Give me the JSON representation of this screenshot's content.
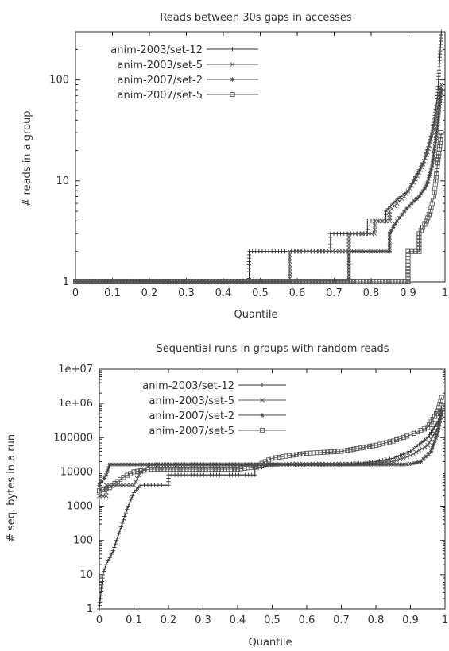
{
  "chart_data": [
    {
      "type": "line",
      "title": "Reads between 30s gaps in accesses",
      "xlabel": "Quantile",
      "ylabel": "# reads in a group",
      "xlim": [
        0,
        1
      ],
      "ylim": [
        1,
        300
      ],
      "y_scale": "log",
      "xticks": [
        "0",
        "0.1",
        "0.2",
        "0.3",
        "0.4",
        "0.5",
        "0.6",
        "0.7",
        "0.8",
        "0.9",
        "1"
      ],
      "yticks": [
        {
          "value": 1,
          "label": "1"
        },
        {
          "value": 10,
          "label": "10"
        },
        {
          "value": 100,
          "label": "100"
        }
      ],
      "legend_position": "top-left",
      "series": [
        {
          "name": "anim-2003/set-12",
          "marker": "plus",
          "color": "#333333",
          "points": [
            [
              0,
              1
            ],
            [
              0.47,
              1
            ],
            [
              0.47,
              2
            ],
            [
              0.69,
              2
            ],
            [
              0.69,
              3
            ],
            [
              0.79,
              3
            ],
            [
              0.79,
              4
            ],
            [
              0.84,
              4
            ],
            [
              0.84,
              5
            ],
            [
              0.86,
              6
            ],
            [
              0.88,
              7
            ],
            [
              0.9,
              8
            ],
            [
              0.92,
              11
            ],
            [
              0.94,
              15
            ],
            [
              0.955,
              22
            ],
            [
              0.97,
              38
            ],
            [
              0.98,
              70
            ],
            [
              0.99,
              300
            ]
          ]
        },
        {
          "name": "anim-2003/set-5",
          "marker": "x",
          "color": "#555555",
          "points": [
            [
              0,
              1
            ],
            [
              0.58,
              1
            ],
            [
              0.58,
              2
            ],
            [
              0.74,
              2
            ],
            [
              0.74,
              3
            ],
            [
              0.81,
              3
            ],
            [
              0.81,
              4
            ],
            [
              0.85,
              4
            ],
            [
              0.85,
              5
            ],
            [
              0.87,
              6
            ],
            [
              0.89,
              7
            ],
            [
              0.91,
              9
            ],
            [
              0.93,
              12
            ],
            [
              0.95,
              18
            ],
            [
              0.965,
              28
            ],
            [
              0.98,
              55
            ],
            [
              0.99,
              90
            ]
          ]
        },
        {
          "name": "anim-2007/set-2",
          "marker": "star",
          "color": "#444444",
          "points": [
            [
              0,
              1
            ],
            [
              0.74,
              1
            ],
            [
              0.74,
              2
            ],
            [
              0.85,
              2
            ],
            [
              0.85,
              3
            ],
            [
              0.87,
              4
            ],
            [
              0.89,
              5
            ],
            [
              0.91,
              6
            ],
            [
              0.93,
              7
            ],
            [
              0.95,
              9
            ],
            [
              0.965,
              14
            ],
            [
              0.98,
              35
            ],
            [
              0.99,
              80
            ]
          ]
        },
        {
          "name": "anim-2007/set-5",
          "marker": "square",
          "color": "#555555",
          "points": [
            [
              0,
              1
            ],
            [
              0.9,
              1
            ],
            [
              0.9,
              2
            ],
            [
              0.93,
              2
            ],
            [
              0.93,
              3
            ],
            [
              0.95,
              4
            ],
            [
              0.96,
              5
            ],
            [
              0.97,
              7
            ],
            [
              0.975,
              10
            ],
            [
              0.98,
              15
            ],
            [
              0.99,
              30
            ]
          ]
        }
      ]
    },
    {
      "type": "line",
      "title": "Sequential runs in groups with random reads",
      "xlabel": "Quantile",
      "ylabel": "# seq. bytes in a run",
      "xlim": [
        0,
        1
      ],
      "ylim": [
        1,
        10000000
      ],
      "y_scale": "log",
      "xticks": [
        "0",
        "0.1",
        "0.2",
        "0.3",
        "0.4",
        "0.5",
        "0.6",
        "0.7",
        "0.8",
        "0.9",
        "1"
      ],
      "yticks": [
        {
          "value": 1,
          "label": "1"
        },
        {
          "value": 10,
          "label": "10"
        },
        {
          "value": 100,
          "label": "100"
        },
        {
          "value": 1000,
          "label": "1000"
        },
        {
          "value": 10000,
          "label": "10000"
        },
        {
          "value": 100000,
          "label": "100000"
        },
        {
          "value": 1000000,
          "label": "1e+06"
        },
        {
          "value": 10000000,
          "label": "1e+07"
        }
      ],
      "legend_position": "top-left",
      "series": [
        {
          "name": "anim-2003/set-12",
          "marker": "plus",
          "color": "#333333",
          "points": [
            [
              0,
              1
            ],
            [
              0.01,
              10
            ],
            [
              0.02,
              20
            ],
            [
              0.04,
              50
            ],
            [
              0.06,
              200
            ],
            [
              0.08,
              800
            ],
            [
              0.1,
              2500
            ],
            [
              0.12,
              4096
            ],
            [
              0.2,
              4096
            ],
            [
              0.2,
              8192
            ],
            [
              0.45,
              8192
            ],
            [
              0.45,
              12000
            ],
            [
              0.5,
              16384
            ],
            [
              0.7,
              16384
            ],
            [
              0.75,
              18000
            ],
            [
              0.8,
              20000
            ],
            [
              0.85,
              25000
            ],
            [
              0.9,
              40000
            ],
            [
              0.95,
              100000
            ],
            [
              0.98,
              300000
            ],
            [
              0.99,
              700000
            ]
          ]
        },
        {
          "name": "anim-2003/set-5",
          "marker": "x",
          "color": "#555555",
          "points": [
            [
              0,
              2000
            ],
            [
              0.02,
              2000
            ],
            [
              0.02,
              4096
            ],
            [
              0.1,
              4096
            ],
            [
              0.12,
              10000
            ],
            [
              0.15,
              16384
            ],
            [
              0.5,
              16384
            ],
            [
              0.55,
              17000
            ],
            [
              0.75,
              17000
            ],
            [
              0.85,
              20000
            ],
            [
              0.9,
              30000
            ],
            [
              0.95,
              60000
            ],
            [
              0.98,
              200000
            ],
            [
              0.99,
              500000
            ]
          ]
        },
        {
          "name": "anim-2007/set-2",
          "marker": "star",
          "color": "#444444",
          "points": [
            [
              0,
              4096
            ],
            [
              0.02,
              8192
            ],
            [
              0.03,
              16384
            ],
            [
              0.77,
              16384
            ],
            [
              0.8,
              16384
            ],
            [
              0.88,
              16384
            ],
            [
              0.9,
              17000
            ],
            [
              0.93,
              20000
            ],
            [
              0.96,
              40000
            ],
            [
              0.98,
              150000
            ],
            [
              0.99,
              600000
            ]
          ]
        },
        {
          "name": "anim-2007/set-5",
          "marker": "square",
          "color": "#555555",
          "points": [
            [
              0,
              2800
            ],
            [
              0.03,
              3500
            ],
            [
              0.06,
              6000
            ],
            [
              0.08,
              8000
            ],
            [
              0.1,
              10000
            ],
            [
              0.15,
              12000
            ],
            [
              0.4,
              12000
            ],
            [
              0.45,
              14000
            ],
            [
              0.48,
              20000
            ],
            [
              0.5,
              25000
            ],
            [
              0.55,
              30000
            ],
            [
              0.6,
              35000
            ],
            [
              0.7,
              40000
            ],
            [
              0.8,
              60000
            ],
            [
              0.85,
              80000
            ],
            [
              0.9,
              120000
            ],
            [
              0.95,
              200000
            ],
            [
              0.98,
              600000
            ],
            [
              0.99,
              1500000
            ]
          ]
        }
      ]
    }
  ]
}
